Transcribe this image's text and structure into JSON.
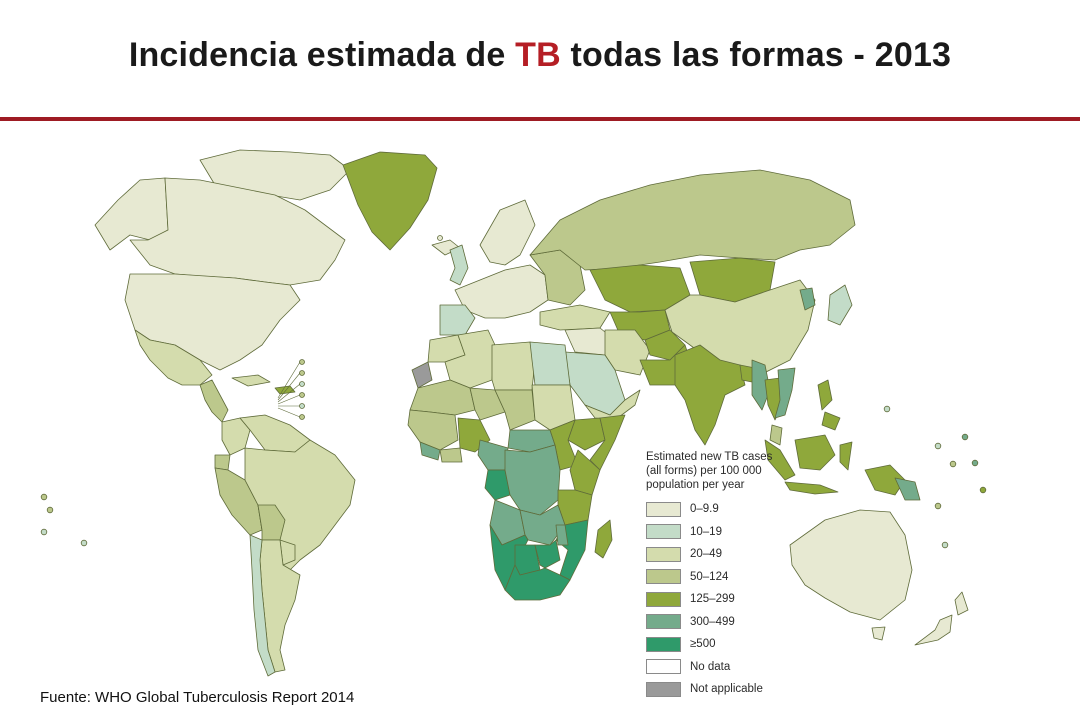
{
  "title": {
    "prefix": "Incidencia estimada de ",
    "highlight": "TB",
    "suffix": " todas las formas - 2013"
  },
  "source": "Fuente: WHO Global Tuberculosis Report 2014",
  "legend": {
    "title": "Estimated new TB cases (all forms) per 100 000 population per year",
    "items": [
      {
        "label": "0–9.9",
        "color": "#e7e9d2"
      },
      {
        "label": "10–19",
        "color": "#c3dcc8"
      },
      {
        "label": "20–49",
        "color": "#d4dcad"
      },
      {
        "label": "50–124",
        "color": "#bcc88c"
      },
      {
        "label": "125–299",
        "color": "#8fa83b"
      },
      {
        "label": "300–499",
        "color": "#74ab8b"
      },
      {
        "label": "≥500",
        "color": "#2f9a6a"
      },
      {
        "label": "No data",
        "color": "#ffffff"
      },
      {
        "label": "Not applicable",
        "color": "#9a9a9a"
      }
    ]
  },
  "colors": {
    "title_accent": "#b51e25",
    "rule": "#9e1b23",
    "border": "#5f6b3a"
  }
}
